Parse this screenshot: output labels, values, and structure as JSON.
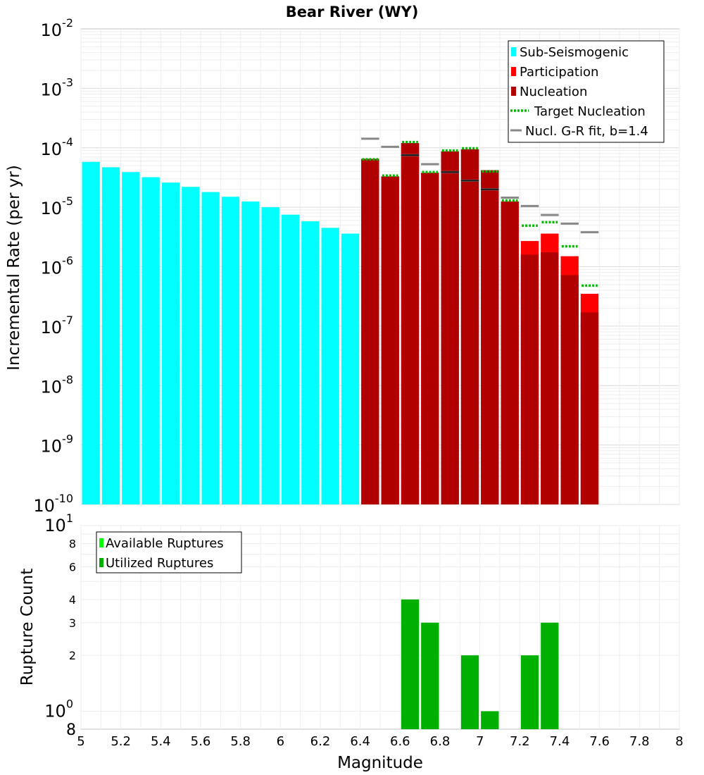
{
  "title": "Bear River (WY)",
  "chart_data": [
    {
      "type": "bar",
      "panel": "rates",
      "yscale": "log",
      "title": "Bear River (WY)",
      "ylabel": "Incremental Rate (per yr)",
      "xlim": [
        5,
        8
      ],
      "ylim": [
        1e-10,
        0.01
      ],
      "y_ticks": [
        {
          "base": "10",
          "exp": "-2"
        },
        {
          "base": "10",
          "exp": "-3"
        },
        {
          "base": "10",
          "exp": "-4"
        },
        {
          "base": "10",
          "exp": "-5"
        },
        {
          "base": "10",
          "exp": "-6"
        },
        {
          "base": "10",
          "exp": "-7"
        },
        {
          "base": "10",
          "exp": "-8"
        },
        {
          "base": "10",
          "exp": "-9"
        },
        {
          "base": "10",
          "exp": "-10"
        }
      ],
      "legend": [
        {
          "label": "Sub-Seismogenic",
          "color": "#00ffff",
          "kind": "bar"
        },
        {
          "label": "Participation",
          "color": "#ff0000",
          "kind": "bar"
        },
        {
          "label": "Nucleation",
          "color": "#b00000",
          "kind": "bar"
        },
        {
          "label": "Target Nucleation",
          "color": "#00bb00",
          "kind": "dotted"
        },
        {
          "label": "Nucl. G-R fit, b=1.4",
          "color": "#888888",
          "kind": "line"
        }
      ],
      "bar_width": 0.1,
      "series": [
        {
          "name": "Sub-Seismogenic",
          "color": "#00ffff",
          "x": [
            5.05,
            5.15,
            5.25,
            5.35,
            5.45,
            5.55,
            5.65,
            5.75,
            5.85,
            5.95,
            6.05,
            6.15,
            6.25,
            6.35
          ],
          "values": [
            5.8e-05,
            4.7e-05,
            3.9e-05,
            3.2e-05,
            2.6e-05,
            2.2e-05,
            1.8e-05,
            1.5e-05,
            1.25e-05,
            1e-05,
            7.5e-06,
            5.8e-06,
            4.5e-06,
            3.6e-06
          ]
        },
        {
          "name": "Participation",
          "color": "#ff0000",
          "x": [
            6.45,
            6.55,
            6.65,
            6.75,
            6.85,
            6.95,
            7.05,
            7.15,
            7.25,
            7.35,
            7.45,
            7.55
          ],
          "values": [
            6.5e-05,
            3.3e-05,
            0.00012,
            3.8e-05,
            8.7e-05,
            9.4e-05,
            4.2e-05,
            1.25e-05,
            2.7e-06,
            3.6e-06,
            1.5e-06,
            3.5e-07
          ]
        },
        {
          "name": "Nucleation",
          "color": "#b00000",
          "x": [
            6.45,
            6.55,
            6.65,
            6.75,
            6.85,
            6.95,
            7.05,
            7.15,
            7.25,
            7.35,
            7.45,
            7.55
          ],
          "values": [
            6.5e-05,
            3.3e-05,
            0.00012,
            3.8e-05,
            8.7e-05,
            9.4e-05,
            4.2e-05,
            1.25e-05,
            1.6e-06,
            1.75e-06,
            7.2e-07,
            1.7e-07
          ]
        },
        {
          "name": "Target Nucleation",
          "color": "#00bb00",
          "x": [
            6.45,
            6.55,
            6.65,
            6.75,
            6.85,
            6.95,
            7.05,
            7.15,
            7.25,
            7.35,
            7.45,
            7.55
          ],
          "values": [
            6.4e-05,
            3.4e-05,
            0.000125,
            3.9e-05,
            9e-05,
            9.8e-05,
            4e-05,
            1.3e-05,
            4.9e-06,
            5.6e-06,
            2.2e-06,
            4.8e-07
          ]
        },
        {
          "name": "Nucl. G-R fit, b=1.4",
          "color": "#888888",
          "x": [
            6.45,
            6.55,
            6.65,
            6.75,
            6.85,
            6.95,
            7.05,
            7.15,
            7.25,
            7.35,
            7.45,
            7.55
          ],
          "values": [
            0.000142,
            0.000104,
            7.5e-05,
            5.3e-05,
            3.9e-05,
            2.8e-05,
            2e-05,
            1.45e-05,
            1.05e-05,
            7.4e-06,
            5.3e-06,
            3.8e-06
          ]
        },
        {
          "name": "Black segments",
          "color": "#111111",
          "x": [
            6.65,
            6.85,
            6.95,
            7.05
          ],
          "values": [
            7.5e-05,
            3.9e-05,
            2.8e-05,
            2e-05
          ]
        }
      ]
    },
    {
      "type": "bar",
      "panel": "counts",
      "yscale": "log",
      "ylabel": "Rupture Count",
      "xlabel": "Magnitude",
      "xlim": [
        5,
        8
      ],
      "ylim": [
        0.8,
        10
      ],
      "x_ticks": [
        "5",
        "5.2",
        "5.4",
        "5.6",
        "5.8",
        "6",
        "6.2",
        "6.4",
        "6.6",
        "6.8",
        "7",
        "7.2",
        "7.4",
        "7.6",
        "7.8",
        "8"
      ],
      "y_ticks": [
        {
          "value": 10,
          "base": "10",
          "exp": "1"
        },
        {
          "value": 8,
          "label": "8"
        },
        {
          "value": 6,
          "label": "6"
        },
        {
          "value": 4,
          "label": "4"
        },
        {
          "value": 3,
          "label": "3"
        },
        {
          "value": 2,
          "label": "2"
        },
        {
          "value": 1,
          "base": "10",
          "exp": "0"
        },
        {
          "value": 0.8,
          "label": "8"
        }
      ],
      "legend": [
        {
          "label": "Available Ruptures",
          "color": "#00ff00"
        },
        {
          "label": "Utilized Ruptures",
          "color": "#00b000"
        }
      ],
      "bar_width": 0.1,
      "series": [
        {
          "name": "Utilized Ruptures",
          "color": "#00b000",
          "x": [
            6.65,
            6.75,
            6.95,
            7.05,
            7.25,
            7.35
          ],
          "values": [
            4,
            3,
            2,
            1,
            2,
            3
          ]
        }
      ]
    }
  ]
}
